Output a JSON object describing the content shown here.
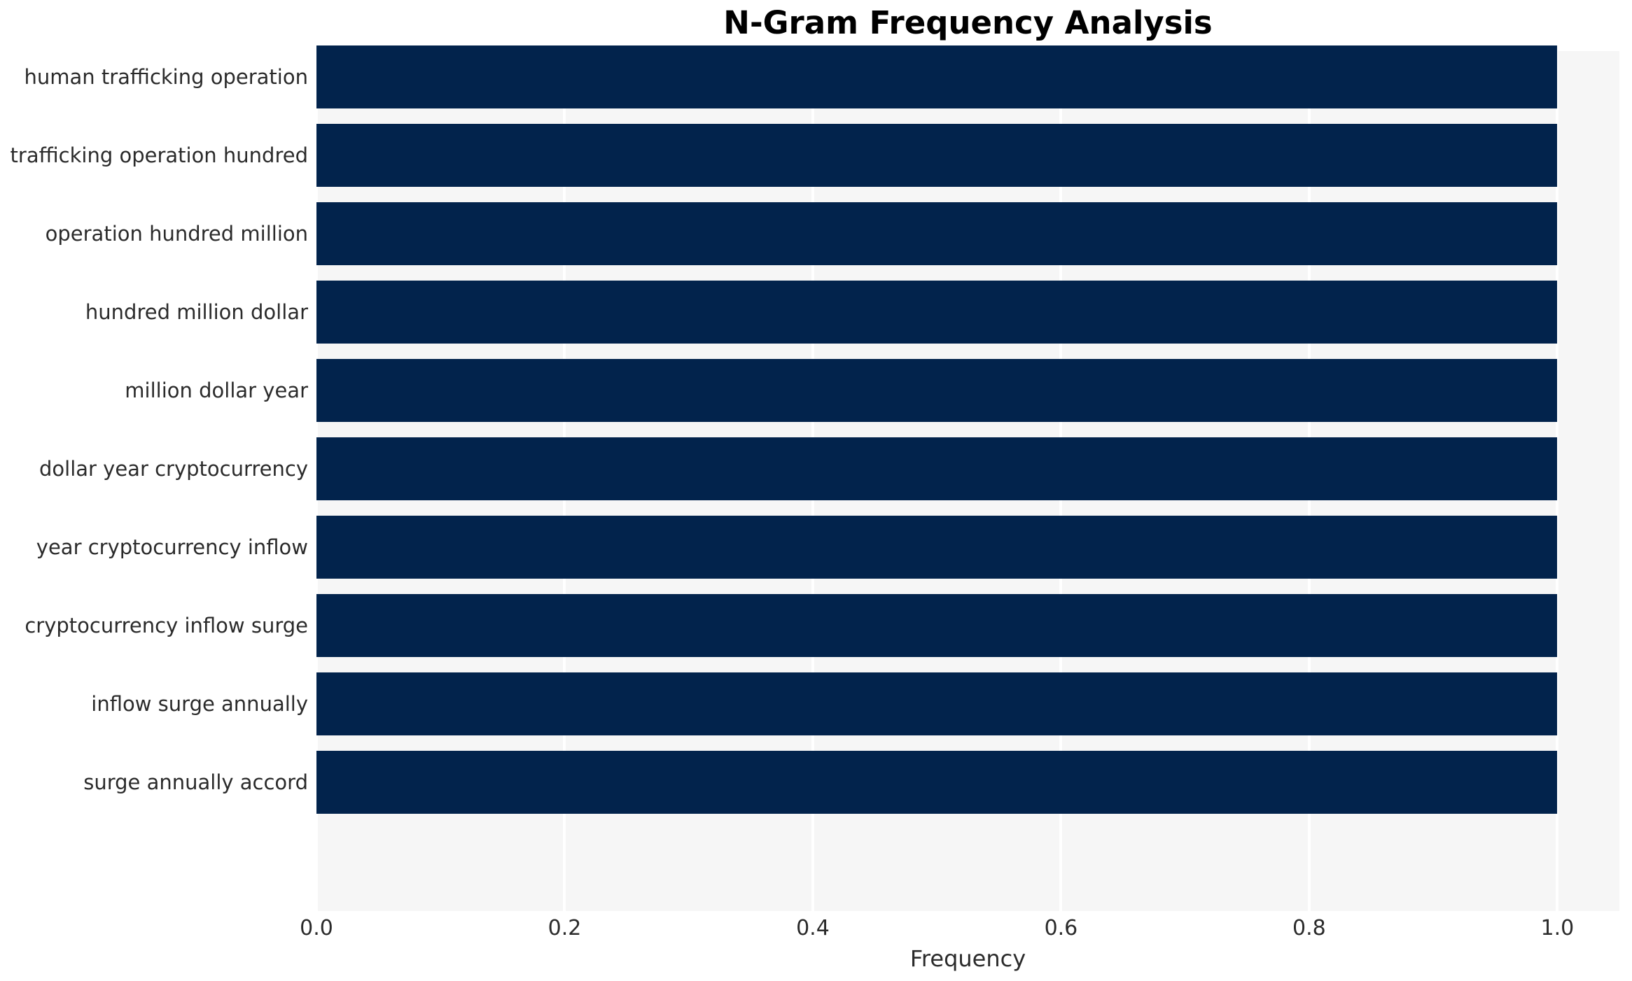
{
  "chart_data": {
    "type": "bar",
    "orientation": "horizontal",
    "title": "N-Gram Frequency Analysis",
    "xlabel": "Frequency",
    "ylabel": "",
    "categories": [
      "human trafficking operation",
      "trafficking operation hundred",
      "operation hundred million",
      "hundred million dollar",
      "million dollar year",
      "dollar year cryptocurrency",
      "year cryptocurrency inflow",
      "cryptocurrency inflow surge",
      "inflow surge annually",
      "surge annually accord"
    ],
    "values": [
      1.0,
      1.0,
      1.0,
      1.0,
      1.0,
      1.0,
      1.0,
      1.0,
      1.0,
      1.0
    ],
    "xlim": [
      0,
      1.05
    ],
    "xticks": [
      0.0,
      0.2,
      0.4,
      0.6,
      0.8,
      1.0
    ],
    "xtick_labels": [
      "0.0",
      "0.2",
      "0.4",
      "0.6",
      "0.8",
      "1.0"
    ],
    "grid": true,
    "gridline_orientation": "vertical",
    "legend": false,
    "colors": {
      "bar": "#02234C",
      "plot_background": "#F6F6F6",
      "gridline": "#FFFFFF",
      "title_text": "#000000",
      "label_text": "#2B2B2B"
    }
  }
}
